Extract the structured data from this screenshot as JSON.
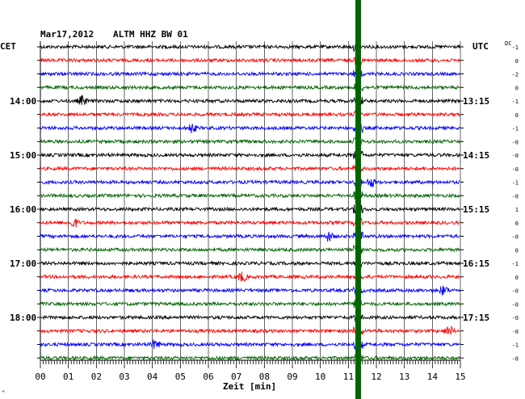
{
  "header": {
    "date": "Mar17,2012",
    "station": "ALTM HHZ BW 01",
    "left_timezone": "CET",
    "right_timezone": "UTC",
    "dc_label": "DC"
  },
  "chart_data": {
    "type": "line",
    "title": "Mar17,2012   ALTM HHZ BW 01",
    "xlabel": "Zeit [min]",
    "xlim": [
      0,
      15
    ],
    "x_ticks": [
      "00",
      "01",
      "02",
      "03",
      "04",
      "05",
      "06",
      "07",
      "08",
      "09",
      "10",
      "11",
      "12",
      "13",
      "14",
      "15"
    ],
    "trace_count": 24,
    "trace_colors": [
      "#000000",
      "#ff0000",
      "#0000ff",
      "#006400"
    ],
    "left_time_labels": [
      {
        "trace": 4,
        "label": "14:00"
      },
      {
        "trace": 8,
        "label": "15:00"
      },
      {
        "trace": 12,
        "label": "16:00"
      },
      {
        "trace": 16,
        "label": "17:00"
      },
      {
        "trace": 20,
        "label": "18:00"
      }
    ],
    "right_time_labels": [
      {
        "trace": 4,
        "label": "13:15"
      },
      {
        "trace": 8,
        "label": "14:15"
      },
      {
        "trace": 12,
        "label": "15:15"
      },
      {
        "trace": 16,
        "label": "16:15"
      },
      {
        "trace": 20,
        "label": "17:15"
      }
    ],
    "dc_offsets": [
      "-1",
      "0",
      "-2",
      "0",
      "-1",
      "0",
      "-1",
      "-0",
      "-0",
      "-0",
      "-1",
      "-0",
      "1",
      "0",
      "-0",
      "0",
      "-1",
      "0",
      "-0",
      "-0",
      "-0",
      "-0",
      "-1",
      "-0"
    ],
    "marker": {
      "minute": 11.35,
      "color": "#006400"
    },
    "events": [
      {
        "trace": 4,
        "minute": 1.5
      },
      {
        "trace": 6,
        "minute": 5.4
      },
      {
        "trace": 10,
        "minute": 11.8
      },
      {
        "trace": 13,
        "minute": 1.2
      },
      {
        "trace": 14,
        "minute": 10.3
      },
      {
        "trace": 17,
        "minute": 7.2
      },
      {
        "trace": 18,
        "minute": 14.4
      },
      {
        "trace": 21,
        "minute": 14.6
      },
      {
        "trace": 22,
        "minute": 4.1
      }
    ]
  },
  "footer": {
    "corner_mark": "^"
  }
}
